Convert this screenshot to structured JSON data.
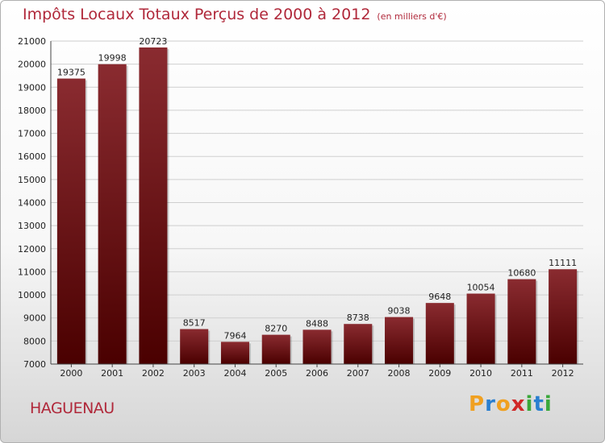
{
  "title": "Impôts Locaux Totaux Perçus de 2000 à 2012",
  "subtitle": "(en milliers d'€)",
  "commune": "HAGUENAU",
  "logo": {
    "letters": [
      "P",
      "r",
      "o",
      "x",
      "i",
      "t",
      "i"
    ],
    "colors": [
      "#f0a020",
      "#2a7fd0",
      "#f0a020",
      "#d02828",
      "#3aa83a",
      "#2a7fd0",
      "#3aa83a"
    ]
  },
  "colors": {
    "bar_top": "#8a2b30",
    "bar_bottom": "#4a0000",
    "title": "#b0283a"
  },
  "chart_data": {
    "type": "bar",
    "title": "Impôts Locaux Totaux Perçus de 2000 à 2012",
    "xlabel": "",
    "ylabel": "",
    "ylim": [
      7000,
      21000
    ],
    "yticks": [
      7000,
      8000,
      9000,
      10000,
      11000,
      12000,
      13000,
      14000,
      15000,
      16000,
      17000,
      18000,
      19000,
      20000,
      21000
    ],
    "grid": true,
    "categories": [
      "2000",
      "2001",
      "2002",
      "2003",
      "2004",
      "2005",
      "2006",
      "2007",
      "2008",
      "2009",
      "2010",
      "2011",
      "2012"
    ],
    "values": [
      19375,
      19998,
      20723,
      8517,
      7964,
      8270,
      8488,
      8738,
      9038,
      9648,
      10054,
      10680,
      11111
    ]
  }
}
